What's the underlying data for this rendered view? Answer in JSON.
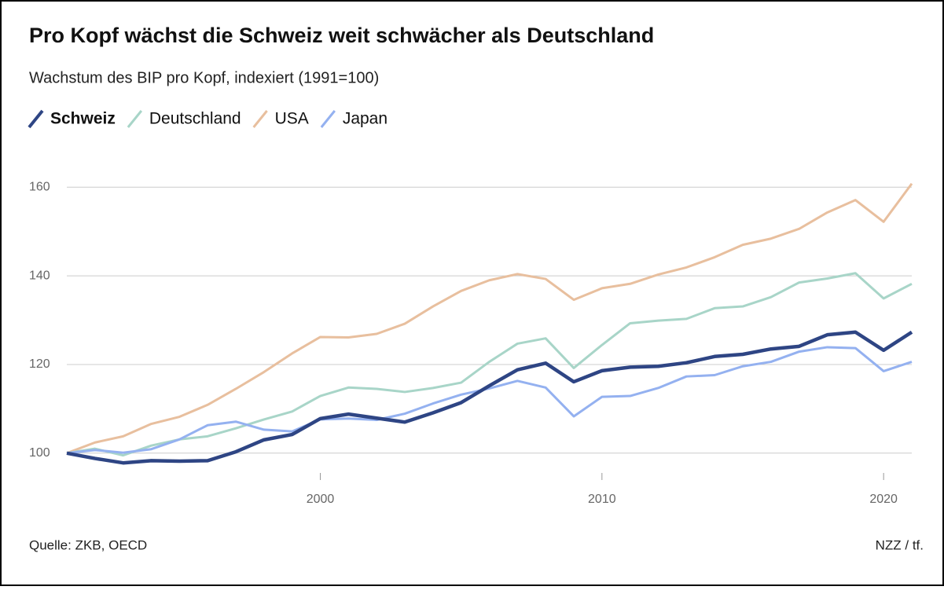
{
  "chart_data": {
    "type": "line",
    "title": "Pro Kopf wächst die Schweiz weit schwächer als Deutschland",
    "subtitle": "Wachstum des BIP pro Kopf, indexiert (1991=100)",
    "source": "Quelle: ZKB, OECD",
    "credit": "NZZ / tf.",
    "x": [
      1991,
      1992,
      1993,
      1994,
      1995,
      1996,
      1997,
      1998,
      1999,
      2000,
      2001,
      2002,
      2003,
      2004,
      2005,
      2006,
      2007,
      2008,
      2009,
      2010,
      2011,
      2012,
      2013,
      2014,
      2015,
      2016,
      2017,
      2018,
      2019,
      2020,
      2021
    ],
    "series": [
      {
        "name": "Schweiz",
        "color": "#2e4584",
        "values": [
          100,
          98.8,
          97.8,
          98.3,
          98.2,
          98.3,
          100.3,
          103,
          104.2,
          107.8,
          108.8,
          107.9,
          107.0,
          109.1,
          111.4,
          115.2,
          118.8,
          120.3,
          116.1,
          118.6,
          119.4,
          119.6,
          120.4,
          121.8,
          122.3,
          123.5,
          124.1,
          126.7,
          127.3,
          123.2,
          127.3
        ]
      },
      {
        "name": "Deutschland",
        "color": "#a8d5c8",
        "values": [
          100,
          101,
          99.5,
          101.7,
          103.1,
          103.8,
          105.6,
          107.6,
          109.4,
          112.9,
          114.8,
          114.5,
          113.8,
          114.7,
          115.9,
          120.6,
          124.7,
          125.9,
          119.2,
          124.4,
          129.3,
          129.9,
          130.3,
          132.7,
          133.1,
          135.2,
          138.5,
          139.4,
          140.6,
          134.9,
          138.2
        ]
      },
      {
        "name": "USA",
        "color": "#e8bf9e",
        "values": [
          100,
          102.4,
          103.8,
          106.6,
          108.2,
          110.9,
          114.5,
          118.3,
          122.5,
          126.2,
          126.1,
          126.9,
          129.2,
          133.1,
          136.6,
          139,
          140.4,
          139.3,
          134.6,
          137.2,
          138.2,
          140.3,
          141.9,
          144.2,
          147,
          148.4,
          150.6,
          154.3,
          157.1,
          152.2,
          160.8
        ]
      },
      {
        "name": "Japan",
        "color": "#94b1f0",
        "values": [
          100,
          100.7,
          100.1,
          100.9,
          103.1,
          106.3,
          107.1,
          105.3,
          104.9,
          107.6,
          107.8,
          107.5,
          108.9,
          111.2,
          113.2,
          114.6,
          116.3,
          114.8,
          108.3,
          112.7,
          112.9,
          114.7,
          117.3,
          117.6,
          119.6,
          120.6,
          122.9,
          123.9,
          123.7,
          118.5,
          120.6
        ]
      }
    ],
    "xlim": [
      1991,
      2021
    ],
    "xticks": [
      2000,
      2010,
      2020
    ],
    "ylim": [
      95,
      162
    ],
    "yticks": [
      100,
      120,
      140,
      160
    ],
    "grid": true
  }
}
